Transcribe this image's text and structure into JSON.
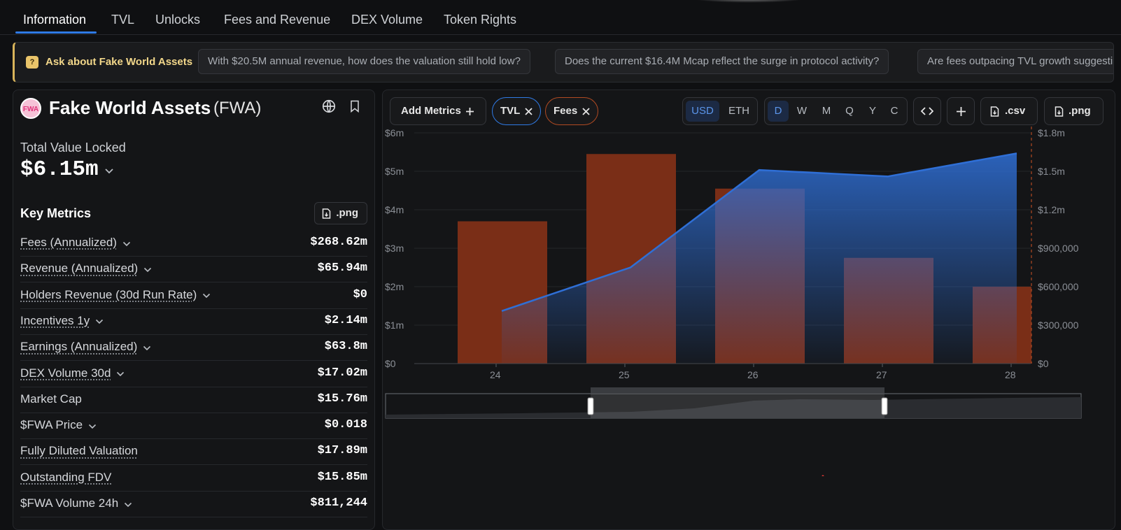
{
  "tabs": [
    "Information",
    "TVL",
    "Unlocks",
    "Fees and Revenue",
    "DEX Volume",
    "Token Rights"
  ],
  "ask": {
    "label": "Ask about Fake World Assets",
    "chips": [
      "With $20.5M annual revenue, how does the valuation still hold low?",
      "Does the current $16.4M Mcap reflect the surge in protocol activity?",
      "Are fees outpacing TVL growth suggesting higher utilization?"
    ]
  },
  "project": {
    "logo_text": "FWA",
    "name": "Fake World Assets",
    "symbol": "(FWA)"
  },
  "tvl": {
    "label": "Total Value Locked",
    "value": "$6.15m"
  },
  "key_metrics": {
    "title": "Key Metrics",
    "png_label": ".png",
    "items": [
      {
        "label": "Fees (Annualized)",
        "value": "$268.62m"
      },
      {
        "label": "Revenue (Annualized)",
        "value": "$65.94m"
      },
      {
        "label": "Holders Revenue (30d Run Rate)",
        "value": "$0"
      },
      {
        "label": "Incentives 1y",
        "value": "$2.14m"
      },
      {
        "label": "Earnings (Annualized)",
        "value": "$63.8m"
      },
      {
        "label": "DEX Volume 30d",
        "value": "$17.02m"
      },
      {
        "label": "Market Cap",
        "value": "$15.76m"
      },
      {
        "label": "$FWA Price",
        "value": "$0.018"
      },
      {
        "label": "Fully Diluted Valuation",
        "value": "$17.89m"
      },
      {
        "label": "Outstanding FDV",
        "value": "$15.85m"
      },
      {
        "label": "$FWA Volume 24h",
        "value": "$811,244"
      }
    ]
  },
  "toolbar": {
    "add_metrics": "Add Metrics",
    "tvl_chip": "TVL",
    "fees_chip": "Fees",
    "currency": [
      "USD",
      "ETH"
    ],
    "currency_selected": "USD",
    "periods": [
      "D",
      "W",
      "M",
      "Q",
      "Y",
      "C"
    ],
    "period_selected": "D",
    "csv_label": ".csv",
    "png_label": ".png"
  },
  "colors": {
    "tvl": "#2f6fd6",
    "fees": "#7a2e17",
    "accent": "#2f7ae5",
    "ask_accent": "#d8b45a"
  },
  "chart_data": {
    "type": "bar+area",
    "categories": [
      "24",
      "25",
      "26",
      "27",
      "28"
    ],
    "series": [
      {
        "name": "Fees",
        "type": "bar",
        "axis": "left",
        "values": [
          3700000,
          5450000,
          4550000,
          2750000,
          2000000
        ]
      },
      {
        "name": "TVL",
        "type": "area",
        "axis": "right",
        "values": [
          410000,
          750000,
          1510000,
          1460000,
          1640000
        ]
      }
    ],
    "left_axis": {
      "ticks": [
        "$0",
        "$1m",
        "$2m",
        "$3m",
        "$4m",
        "$5m",
        "$6m"
      ],
      "max": 6000000
    },
    "right_axis": {
      "ticks": [
        "$0",
        "$300,000",
        "$600,000",
        "$900,000",
        "$1.2m",
        "$1.5m",
        "$1.8m"
      ],
      "max": 1800000
    },
    "grid": true
  }
}
